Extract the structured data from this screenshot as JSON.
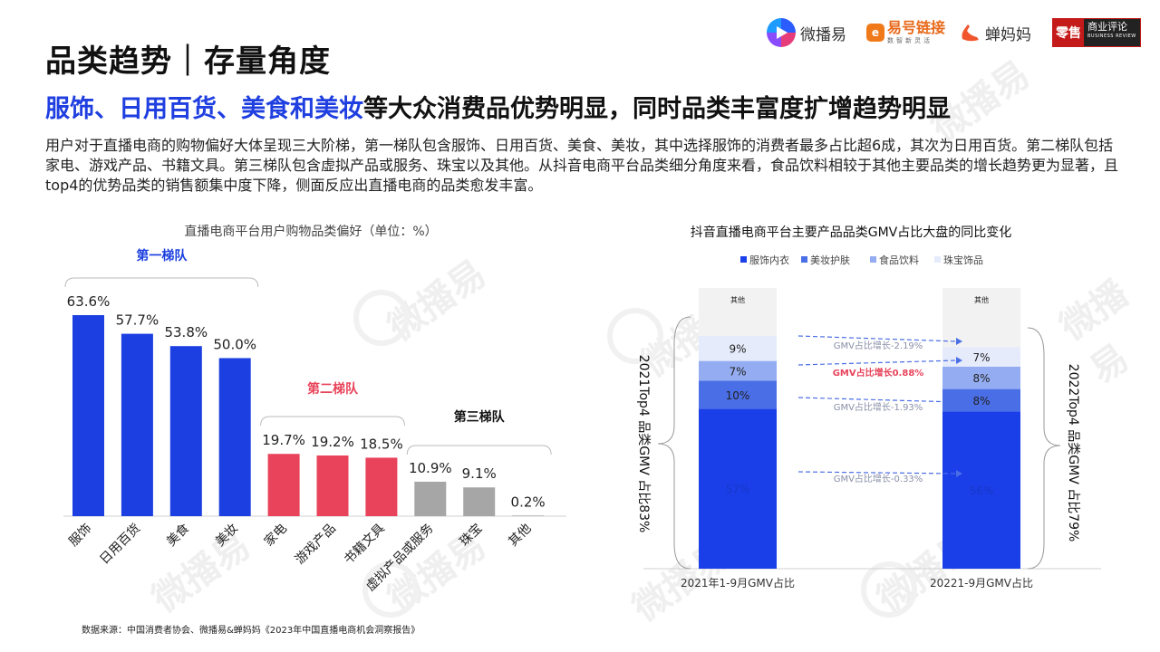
{
  "title": "品类趋势｜存量角度",
  "subtitle": {
    "highlight": "服饰、日用百货、美食和美妆",
    "rest": "等大众消费品优势明显，同时品类丰富度扩增趋势明显"
  },
  "description": "用户对于直播电商的购物偏好大体呈现三大阶梯，第一梯队包含服饰、日用百货、美食、美妆，其中选择服饰的消费者最多占比超6成，其次为日用百货。第二梯队包括家电、游戏产品、书籍文具。第三梯队包含虚拟产品或服务、珠宝以及其他。从抖音电商平台品类细分角度来看，食品饮料相较于其他主要品类的增长趋势更为显著，且top4的优势品类的销售额集中度下降，侧面反应出直播电商的品类愈发丰富。",
  "source": "数据来源：中国消费者协会、微播易&蝉妈妈《2023年中国直播电商机会洞察报告》",
  "logos": {
    "weibo": "微播易",
    "yihao": "易号链接",
    "yihao_sub": "数智新灵活",
    "chanmama": "蝉妈妈",
    "lingshou_a": "零售",
    "lingshou_b": "商业评论",
    "lingshou_c": "BUSINESS REVIEW"
  },
  "watermark": "微播易",
  "colors": {
    "accent_blue": "#1f3fe0",
    "tier1": "#1b3fe0",
    "tier2": "#e8435a",
    "tier3": "#a6a6a6",
    "apparel": "#1a3ee8",
    "beauty": "#4a6ee6",
    "food": "#94adf2",
    "jewelry": "#e6ebfb",
    "other": "#f2f2f2"
  },
  "chart_data": [
    {
      "type": "bar",
      "title": "直播电商平台用户购物品类偏好（单位：%）",
      "categories": [
        "服饰",
        "日用百货",
        "美食",
        "美妆",
        "家电",
        "游戏产品",
        "书籍文具",
        "虚拟产品或服务",
        "珠宝",
        "其他"
      ],
      "values": [
        63.6,
        57.7,
        53.8,
        50.0,
        19.7,
        19.2,
        18.5,
        10.9,
        9.1,
        0.2
      ],
      "value_labels": [
        "63.6%",
        "57.7%",
        "53.8%",
        "50.0%",
        "19.7%",
        "19.2%",
        "18.5%",
        "10.9%",
        "9.1%",
        "0.2%"
      ],
      "ylim": [
        0,
        63.6
      ],
      "groups": [
        {
          "label": "第一梯队",
          "color": "#1b3fe0",
          "categories": [
            "服饰",
            "日用百货",
            "美食",
            "美妆"
          ]
        },
        {
          "label": "第二梯队",
          "color": "#e8435a",
          "categories": [
            "家电",
            "游戏产品",
            "书籍文具"
          ]
        },
        {
          "label": "第三梯队",
          "color": "#111111",
          "categories": [
            "虚拟产品或服务",
            "珠宝",
            "其他"
          ]
        }
      ],
      "grid": false
    },
    {
      "type": "bar",
      "stacked": true,
      "title": "抖音直播电商平台主要产品品类GMV占比大盘的同比变化",
      "legend": [
        "服饰内衣",
        "美妆护肤",
        "食品饮料",
        "珠宝饰品"
      ],
      "legend_position": "top",
      "categories": [
        "2021年1-9月GMV占比",
        "20221-9月GMV占比"
      ],
      "series": [
        {
          "name": "服饰内衣",
          "values": [
            57,
            56
          ],
          "labels": [
            "57%",
            "56%"
          ]
        },
        {
          "name": "美妆护肤",
          "values": [
            10,
            8
          ],
          "labels": [
            "10%",
            "8%"
          ]
        },
        {
          "name": "食品饮料",
          "values": [
            7,
            8
          ],
          "labels": [
            "7%",
            "8%"
          ]
        },
        {
          "name": "珠宝饰品",
          "values": [
            9,
            7
          ],
          "labels": [
            "9%",
            "7%"
          ]
        },
        {
          "name": "其他",
          "values": [
            17,
            21
          ],
          "labels": [
            "其他",
            "其他"
          ]
        }
      ],
      "annotations": [
        "GMV占比增长-2.19%",
        "GMV占比增长0.88%",
        "GMV占比增长-1.93%",
        "GMV占比增长-0.33%"
      ],
      "brace_labels": [
        "2021Top4 品类GMV 占比83%",
        "2022Top4 品类GMV 占比79%"
      ]
    }
  ]
}
